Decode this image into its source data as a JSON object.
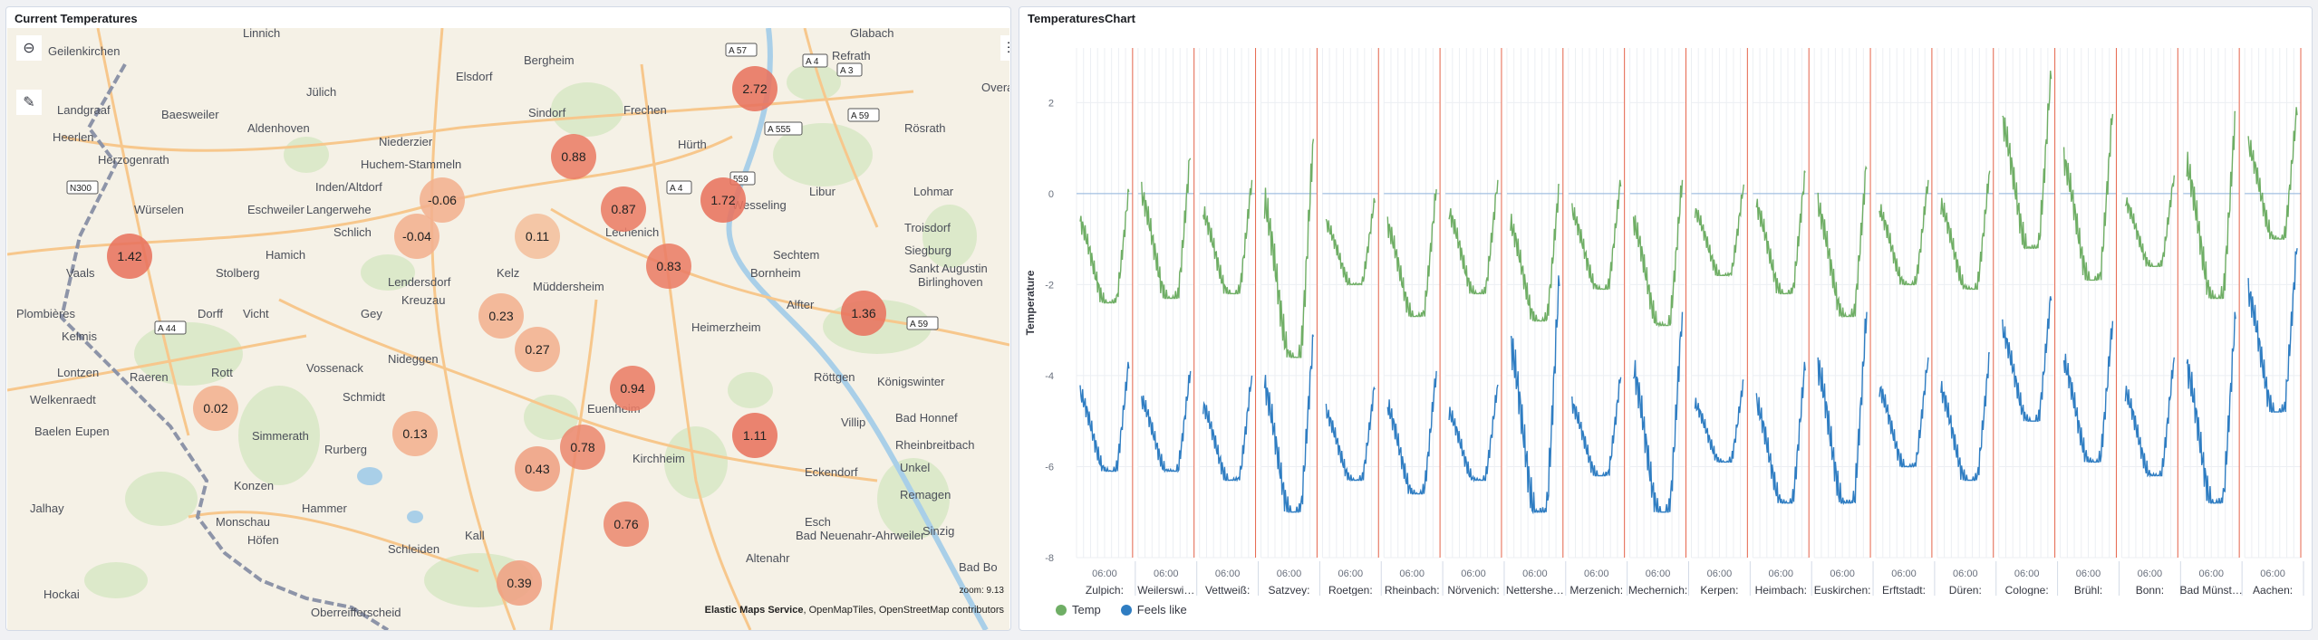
{
  "map_panel": {
    "title": "Current Temperatures",
    "zoom_label": "zoom: 9.13",
    "attribution_bold": "Elastic Maps Service",
    "attribution_rest": ", OpenMapTiles, OpenStreetMap contributors",
    "places": [
      "Geilenkirchen",
      "Linnich",
      "Jülich",
      "Elsdorf",
      "Bergheim",
      "Frechen",
      "Sindorf",
      "Hürth",
      "Refrath",
      "Rösrath",
      "Landgraaf",
      "Baesweiler",
      "Aldenhoven",
      "Niederzier",
      "Huchem-Stammeln",
      "Inden/Altdorf",
      "Herzogenrath",
      "Würselen",
      "Eschweiler",
      "Langerwehe",
      "Schlich",
      "Lechenich",
      "Wesseling",
      "Libur",
      "Lohmar",
      "Troisdorf",
      "Siegburg",
      "Sankt Augustin",
      "Birlinghoven",
      "Vaals",
      "Stolberg",
      "Hamich",
      "Lendersdorf",
      "Kreuzau",
      "Kelz",
      "Müddersheim",
      "Bornheim",
      "Sechtem",
      "Alfter",
      "Plombières",
      "Dorff",
      "Vicht",
      "Gey",
      "Heimerzheim",
      "Kelmis",
      "Lontzen",
      "Rott",
      "Vossenack",
      "Nideggen",
      "Euenheim",
      "Röttgen",
      "Königswinter",
      "Raeren",
      "Schmidt",
      "Welkenraedt",
      "Baelen",
      "Eupen",
      "Simmerath",
      "Rurberg",
      "Kirchheim",
      "Villip",
      "Bad Honnef",
      "Rheinbreitbach",
      "Unkel",
      "Konzen",
      "Eckendorf",
      "Remagen",
      "Jalhay",
      "Monschau",
      "Hammer",
      "Kall",
      "Esch",
      "Bad Neuenahr-Ahrweiler",
      "Sinzig",
      "Höfen",
      "Schleiden",
      "Altenahr",
      "Hockai",
      "Oberreifferscheid",
      "Bad Bo",
      "Overat",
      "Glabach",
      "Heerlen"
    ],
    "road_shields": [
      "A 57",
      "A 4",
      "A 3",
      "A 59",
      "A 555",
      "A 4",
      "A 44",
      "A 59",
      "N300",
      "559"
    ],
    "markers": [
      {
        "value": "2.72",
        "color": "#e8735f"
      },
      {
        "value": "0.88",
        "color": "#ea7d66"
      },
      {
        "value": "-0.06",
        "color": "#f2b08f"
      },
      {
        "value": "0.87",
        "color": "#ea7d66"
      },
      {
        "value": "1.72",
        "color": "#e8735f"
      },
      {
        "value": "1.42",
        "color": "#e8735f"
      },
      {
        "value": "-0.04",
        "color": "#f2b08f"
      },
      {
        "value": "0.11",
        "color": "#f4bf9d"
      },
      {
        "value": "0.83",
        "color": "#ea7d66"
      },
      {
        "value": "1.36",
        "color": "#e8735f"
      },
      {
        "value": "0.23",
        "color": "#f2b08f"
      },
      {
        "value": "0.27",
        "color": "#f2b08f"
      },
      {
        "value": "0.94",
        "color": "#ea7d66"
      },
      {
        "value": "0.02",
        "color": "#f2b08f"
      },
      {
        "value": "0.13",
        "color": "#f2b08f"
      },
      {
        "value": "0.78",
        "color": "#ec8a71"
      },
      {
        "value": "0.43",
        "color": "#efa083"
      },
      {
        "value": "1.11",
        "color": "#e8735f"
      },
      {
        "value": "0.76",
        "color": "#ec8a71"
      },
      {
        "value": "0.39",
        "color": "#efa083"
      }
    ],
    "toolbar_icons": [
      "plus-icon",
      "minus-icon",
      "locate-icon",
      "fullscreen-icon",
      "tools-icon",
      "layers-legend-icon"
    ]
  },
  "chart_panel": {
    "title": "TemperaturesChart",
    "chart_data": {
      "type": "line",
      "ylabel": "Temperature",
      "ylim": [
        -8,
        3.2
      ],
      "yticks": [
        2,
        0,
        -2,
        -4,
        -6,
        -8
      ],
      "tick_label": "06:00",
      "facets": [
        {
          "name": "Zulpich:",
          "temp_range": [
            -2.4,
            0.1
          ],
          "feels_range": [
            -6.1,
            -3.7
          ]
        },
        {
          "name": "Weilerswist:",
          "temp_range": [
            -2.3,
            0.9
          ],
          "feels_range": [
            -6.1,
            -3.9
          ]
        },
        {
          "name": "Vettweiß:",
          "temp_range": [
            -2.2,
            0.3
          ],
          "feels_range": [
            -6.3,
            -4.0
          ]
        },
        {
          "name": "Satzvey:",
          "temp_range": [
            -3.6,
            1.2
          ],
          "feels_range": [
            -7.0,
            -3.1
          ]
        },
        {
          "name": "Roetgen:",
          "temp_range": [
            -2.0,
            -0.1
          ],
          "feels_range": [
            -6.3,
            -4.2
          ]
        },
        {
          "name": "Rheinbach:",
          "temp_range": [
            -2.7,
            0.1
          ],
          "feels_range": [
            -6.6,
            -3.9
          ]
        },
        {
          "name": "Nörvenich:",
          "temp_range": [
            -2.2,
            0.3
          ],
          "feels_range": [
            -6.3,
            -4.2
          ]
        },
        {
          "name": "Nettersheim:",
          "temp_range": [
            -2.8,
            0.2
          ],
          "feels_range": [
            -7.0,
            -1.8
          ]
        },
        {
          "name": "Merzenich:",
          "temp_range": [
            -2.1,
            0.3
          ],
          "feels_range": [
            -6.2,
            -4.0
          ]
        },
        {
          "name": "Mechernich:",
          "temp_range": [
            -2.9,
            0.3
          ],
          "feels_range": [
            -7.0,
            -2.6
          ]
        },
        {
          "name": "Kerpen:",
          "temp_range": [
            -1.8,
            0.2
          ],
          "feels_range": [
            -5.9,
            -4.1
          ]
        },
        {
          "name": "Heimbach:",
          "temp_range": [
            -2.2,
            0.5
          ],
          "feels_range": [
            -6.8,
            -3.7
          ]
        },
        {
          "name": "Euskirchen:",
          "temp_range": [
            -2.7,
            0.7
          ],
          "feels_range": [
            -6.8,
            -2.6
          ]
        },
        {
          "name": "Erftstadt:",
          "temp_range": [
            -2.0,
            0.3
          ],
          "feels_range": [
            -6.0,
            -3.6
          ]
        },
        {
          "name": "Düren:",
          "temp_range": [
            -2.1,
            0.5
          ],
          "feels_range": [
            -6.3,
            -3.5
          ]
        },
        {
          "name": "Cologne:",
          "temp_range": [
            -1.2,
            2.7
          ],
          "feels_range": [
            -5.0,
            -2.2
          ]
        },
        {
          "name": "Brühl:",
          "temp_range": [
            -1.9,
            1.8
          ],
          "feels_range": [
            -5.9,
            -2.8
          ]
        },
        {
          "name": "Bonn:",
          "temp_range": [
            -1.6,
            0.4
          ],
          "feels_range": [
            -6.2,
            -3.6
          ]
        },
        {
          "name": "Bad Münstereifel:",
          "temp_range": [
            -2.3,
            1.8
          ],
          "feels_range": [
            -6.8,
            -2.6
          ]
        },
        {
          "name": "Aachen:",
          "temp_range": [
            -1.0,
            1.9
          ],
          "feels_range": [
            -4.8,
            -1.1
          ]
        }
      ],
      "series": [
        {
          "name": "Temp",
          "color": "#6fae65"
        },
        {
          "name": "Feels like",
          "color": "#2f7dc2"
        }
      ],
      "legend": "bottom-left",
      "grid": true
    }
  }
}
